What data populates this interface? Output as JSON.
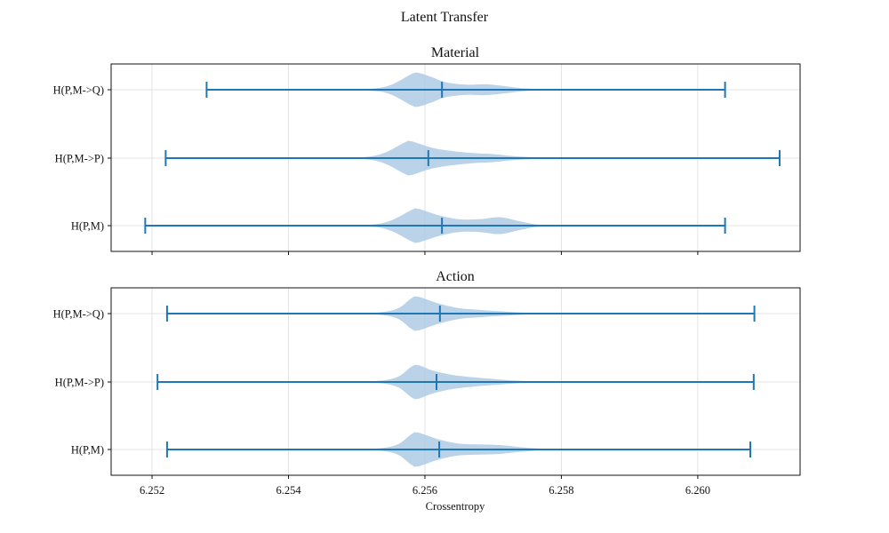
{
  "figure": {
    "title": "Latent Transfer"
  },
  "chart_data": {
    "type": "violin",
    "orientation": "horizontal",
    "xlabel": "Crossentropy",
    "xlim": [
      6.2514,
      6.2615
    ],
    "xticks": [
      6.252,
      6.254,
      6.256,
      6.258,
      6.26
    ],
    "xtick_labels": [
      "6.252",
      "6.254",
      "6.256",
      "6.258",
      "6.260"
    ],
    "grid": true,
    "colors": {
      "body": "#a9c8e2",
      "line": "#1f77b4"
    },
    "panels": [
      {
        "title": "Material",
        "show_xtick_labels": false,
        "series": [
          {
            "name": "H(P,M->Q)",
            "min": 6.2528,
            "median": 6.25625,
            "max": 6.2604,
            "density": [
              [
                6.2545,
                0.0
              ],
              [
                6.2552,
                0.06
              ],
              [
                6.2555,
                0.28
              ],
              [
                6.2558,
                0.92
              ],
              [
                6.2559,
                1.0
              ],
              [
                6.2561,
                0.75
              ],
              [
                6.2563,
                0.45
              ],
              [
                6.2566,
                0.3
              ],
              [
                6.2569,
                0.32
              ],
              [
                6.2572,
                0.2
              ],
              [
                6.2575,
                0.07
              ],
              [
                6.258,
                0.02
              ],
              [
                6.2585,
                0.0
              ]
            ]
          },
          {
            "name": "H(P,M->P)",
            "min": 6.2522,
            "median": 6.25605,
            "max": 6.2612,
            "density": [
              [
                6.2545,
                0.0
              ],
              [
                6.2551,
                0.06
              ],
              [
                6.2554,
                0.3
              ],
              [
                6.2557,
                0.92
              ],
              [
                6.2558,
                1.0
              ],
              [
                6.2561,
                0.62
              ],
              [
                6.2564,
                0.42
              ],
              [
                6.2567,
                0.3
              ],
              [
                6.257,
                0.24
              ],
              [
                6.2573,
                0.12
              ],
              [
                6.2577,
                0.04
              ],
              [
                6.2582,
                0.0
              ]
            ]
          },
          {
            "name": "H(P,M)",
            "min": 6.2519,
            "median": 6.25625,
            "max": 6.2604,
            "density": [
              [
                6.2545,
                0.0
              ],
              [
                6.2552,
                0.06
              ],
              [
                6.2555,
                0.3
              ],
              [
                6.2558,
                0.92
              ],
              [
                6.2559,
                1.0
              ],
              [
                6.2562,
                0.62
              ],
              [
                6.2565,
                0.38
              ],
              [
                6.2568,
                0.38
              ],
              [
                6.2571,
                0.5
              ],
              [
                6.2574,
                0.25
              ],
              [
                6.2577,
                0.05
              ],
              [
                6.2582,
                0.0
              ]
            ]
          }
        ]
      },
      {
        "title": "Action",
        "show_xtick_labels": true,
        "series": [
          {
            "name": "H(P,M->Q)",
            "min": 6.25222,
            "median": 6.25622,
            "max": 6.26083,
            "density": [
              [
                6.2547,
                0.0
              ],
              [
                6.2553,
                0.06
              ],
              [
                6.2556,
                0.3
              ],
              [
                6.2558,
                0.9
              ],
              [
                6.2559,
                1.0
              ],
              [
                6.2562,
                0.6
              ],
              [
                6.2565,
                0.32
              ],
              [
                6.2568,
                0.22
              ],
              [
                6.2571,
                0.14
              ],
              [
                6.2575,
                0.05
              ],
              [
                6.258,
                0.0
              ]
            ]
          },
          {
            "name": "H(P,M->P)",
            "min": 6.25208,
            "median": 6.25617,
            "max": 6.26082,
            "density": [
              [
                6.2547,
                0.0
              ],
              [
                6.2553,
                0.06
              ],
              [
                6.2556,
                0.3
              ],
              [
                6.2558,
                0.9
              ],
              [
                6.2559,
                1.0
              ],
              [
                6.2561,
                0.7
              ],
              [
                6.2564,
                0.42
              ],
              [
                6.2567,
                0.28
              ],
              [
                6.257,
                0.18
              ],
              [
                6.2574,
                0.07
              ],
              [
                6.258,
                0.0
              ]
            ]
          },
          {
            "name": "H(P,M)",
            "min": 6.25222,
            "median": 6.25621,
            "max": 6.26077,
            "density": [
              [
                6.2547,
                0.0
              ],
              [
                6.2553,
                0.06
              ],
              [
                6.2556,
                0.3
              ],
              [
                6.2558,
                0.9
              ],
              [
                6.2559,
                1.0
              ],
              [
                6.2562,
                0.6
              ],
              [
                6.2565,
                0.35
              ],
              [
                6.2568,
                0.3
              ],
              [
                6.2571,
                0.26
              ],
              [
                6.2574,
                0.14
              ],
              [
                6.2578,
                0.03
              ],
              [
                6.2582,
                0.0
              ]
            ]
          }
        ]
      }
    ]
  }
}
